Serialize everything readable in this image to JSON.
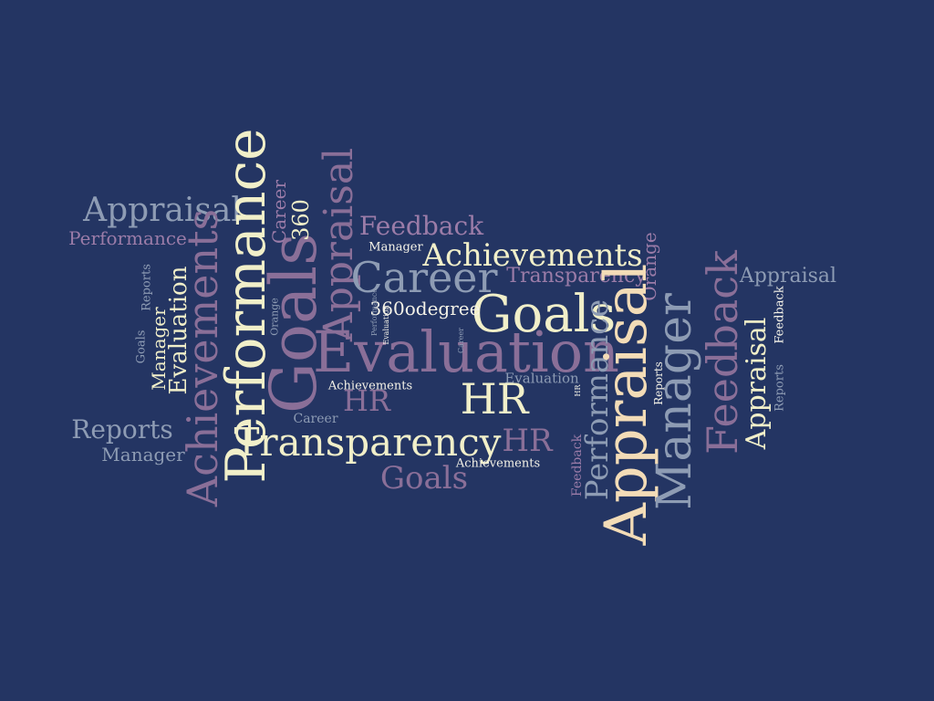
{
  "background_color": "#243563",
  "palette": {
    "cream": "#f1efc9",
    "peach": "#f3dcb7",
    "purple": "#9b7ca8",
    "slate": "#8e9cb4",
    "mauve": "#8a6f98",
    "white": "#f4f2e7"
  },
  "words": [
    {
      "text": "Appraisal"
    },
    {
      "text": "Performance"
    },
    {
      "text": "Performance"
    },
    {
      "text": "Achievements"
    },
    {
      "text": "Goals"
    },
    {
      "text": "Appraisal"
    },
    {
      "text": "Career"
    },
    {
      "text": "360"
    },
    {
      "text": "Feedback"
    },
    {
      "text": "Manager"
    },
    {
      "text": "Achievements"
    },
    {
      "text": "Career"
    },
    {
      "text": "Transparency"
    },
    {
      "text": "Orange"
    },
    {
      "text": "Appraisal"
    },
    {
      "text": "Goals"
    },
    {
      "text": "360odegree"
    },
    {
      "text": "Evaluation"
    },
    {
      "text": "Evaluation"
    },
    {
      "text": "Manager"
    },
    {
      "text": "Reports"
    },
    {
      "text": "Goals"
    },
    {
      "text": "Orange"
    },
    {
      "text": "HR"
    },
    {
      "text": "HR"
    },
    {
      "text": "Career"
    },
    {
      "text": "Achievements"
    },
    {
      "text": "Evaluation"
    },
    {
      "text": "Performance"
    },
    {
      "text": "Appraisal"
    },
    {
      "text": "Reports"
    },
    {
      "text": "Manager"
    },
    {
      "text": "Feedback"
    },
    {
      "text": "Appraisal"
    },
    {
      "text": "Feedback"
    },
    {
      "text": "Reports"
    },
    {
      "text": "Reports"
    },
    {
      "text": "Manager"
    },
    {
      "text": "Transparency"
    },
    {
      "text": "HR"
    },
    {
      "text": "Achievements"
    },
    {
      "text": "Goals"
    },
    {
      "text": "Feedback"
    },
    {
      "text": "Career"
    },
    {
      "text": "Performance"
    },
    {
      "text": "Evaluation"
    },
    {
      "text": "HR"
    }
  ]
}
